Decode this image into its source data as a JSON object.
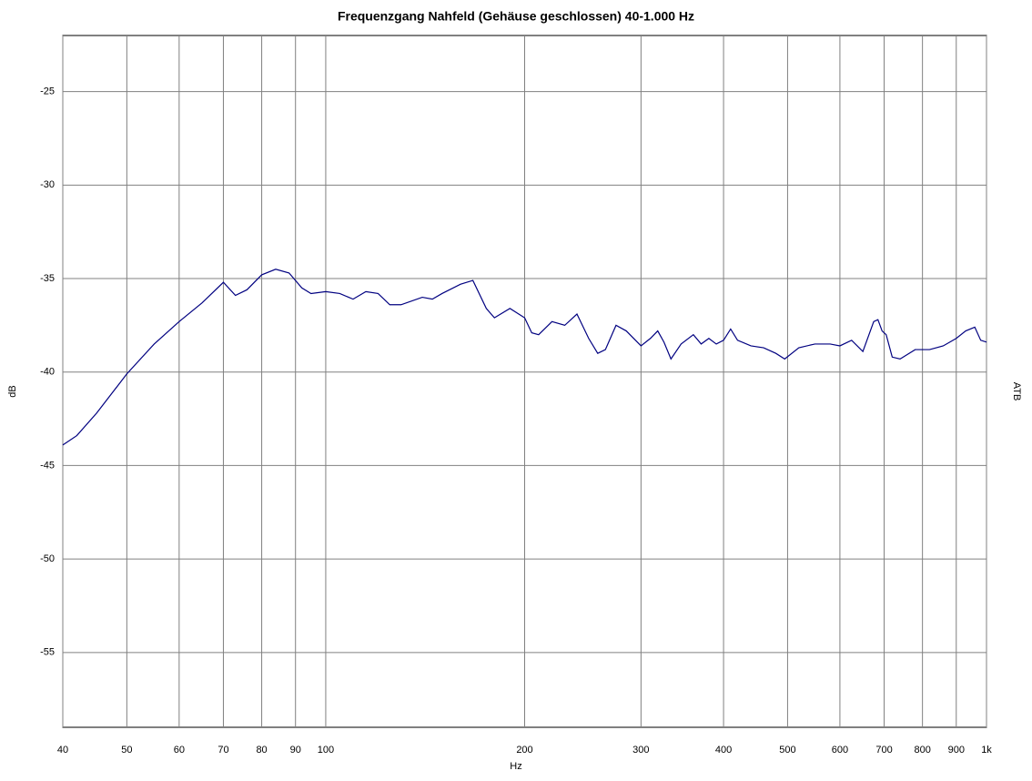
{
  "chart_data": {
    "type": "line",
    "title": "Frequenzgang  Nahfeld (Gehäuse geschlossen) 40-1.000 Hz",
    "x_label": "Hz",
    "y_label": "dB",
    "y2_label": "ATB",
    "x_scale": "log",
    "grid": true,
    "xlim": [
      40,
      1000
    ],
    "ylim": [
      -59,
      -22
    ],
    "xticks": [
      40,
      50,
      60,
      70,
      80,
      90,
      100,
      200,
      300,
      400,
      500,
      600,
      700,
      800,
      900,
      {
        "value": 1000,
        "label": "1k"
      }
    ],
    "yticks": [
      -25,
      -30,
      -35,
      -40,
      -45,
      -50,
      -55
    ],
    "x": [
      40,
      42,
      45,
      50,
      55,
      60,
      65,
      70,
      73,
      76,
      80,
      84,
      88,
      92,
      95,
      100,
      105,
      110,
      115,
      120,
      125,
      130,
      140,
      145,
      150,
      160,
      167,
      175,
      180,
      190,
      200,
      205,
      210,
      220,
      230,
      240,
      250,
      258,
      265,
      275,
      285,
      300,
      310,
      318,
      325,
      333,
      345,
      360,
      370,
      380,
      390,
      400,
      410,
      420,
      440,
      460,
      480,
      495,
      520,
      550,
      580,
      600,
      625,
      650,
      675,
      685,
      695,
      705,
      720,
      740,
      780,
      820,
      860,
      900,
      930,
      960,
      980,
      1000
    ],
    "series": [
      {
        "name": "Frequenzgang",
        "color": "#000080",
        "values": [
          -43.9,
          -43.4,
          -42.2,
          -40.1,
          -38.5,
          -37.3,
          -36.3,
          -35.2,
          -35.9,
          -35.6,
          -34.8,
          -34.5,
          -34.7,
          -35.5,
          -35.8,
          -35.7,
          -35.8,
          -36.1,
          -35.7,
          -35.8,
          -36.4,
          -36.4,
          -36.0,
          -36.1,
          -35.8,
          -35.3,
          -35.1,
          -36.6,
          -37.1,
          -36.6,
          -37.1,
          -37.9,
          -38.0,
          -37.3,
          -37.5,
          -36.9,
          -38.2,
          -39.0,
          -38.8,
          -37.5,
          -37.8,
          -38.6,
          -38.2,
          -37.8,
          -38.4,
          -39.3,
          -38.5,
          -38.0,
          -38.5,
          -38.2,
          -38.5,
          -38.3,
          -37.7,
          -38.3,
          -38.6,
          -38.7,
          -39.0,
          -39.3,
          -38.7,
          -38.5,
          -38.5,
          -38.6,
          -38.3,
          -38.9,
          -37.3,
          -37.2,
          -37.8,
          -38.0,
          -39.2,
          -39.3,
          -38.8,
          -38.8,
          -38.6,
          -38.2,
          -37.8,
          -37.6,
          -38.3,
          -38.4
        ]
      }
    ]
  }
}
